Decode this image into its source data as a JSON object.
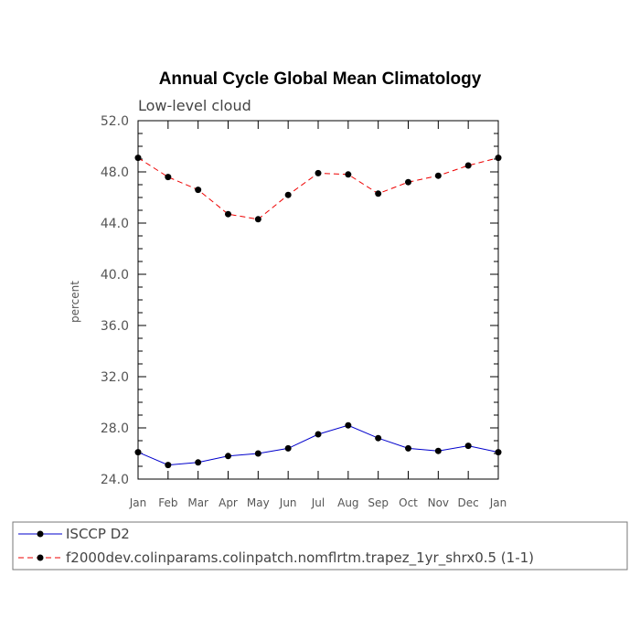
{
  "chart_data": {
    "type": "line",
    "title": "Annual Cycle Global Mean Climatology",
    "subtitle": "Low-level cloud",
    "xlabel": "",
    "ylabel": "percent",
    "categories": [
      "Jan",
      "Feb",
      "Mar",
      "Apr",
      "May",
      "Jun",
      "Jul",
      "Aug",
      "Sep",
      "Oct",
      "Nov",
      "Dec",
      "Jan"
    ],
    "ylim": [
      24.0,
      52.0
    ],
    "yticks": [
      "24.0",
      "28.0",
      "32.0",
      "36.0",
      "40.0",
      "44.0",
      "48.0",
      "52.0"
    ],
    "grid": false,
    "legend_position": "bottom",
    "series": [
      {
        "name": "ISCCP D2",
        "color": "#0000cc",
        "dash": "solid",
        "values": [
          26.1,
          25.1,
          25.3,
          25.8,
          26.0,
          26.4,
          27.5,
          28.2,
          27.2,
          26.4,
          26.2,
          26.6,
          26.1
        ]
      },
      {
        "name": "f2000dev.colinparams.colinpatch.nomflrtm.trapez_1yr_shrx0.5 (1-1)",
        "color": "#ee0000",
        "dash": "dashed",
        "values": [
          49.1,
          47.6,
          46.6,
          44.7,
          44.3,
          46.2,
          47.9,
          47.8,
          46.3,
          47.2,
          47.7,
          48.5,
          49.1
        ]
      }
    ]
  }
}
